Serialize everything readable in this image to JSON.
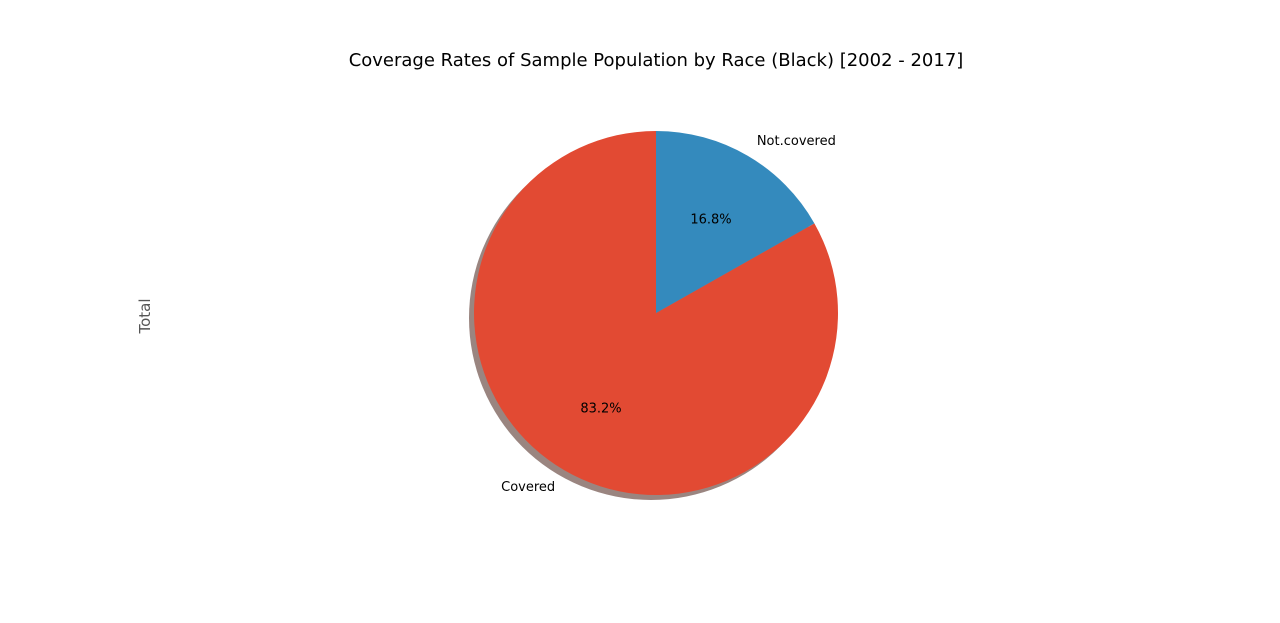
{
  "chart_data": {
    "type": "pie",
    "title": "Coverage Rates of Sample Population by Race (Black) [2002 - 2017]",
    "ylabel": "Total",
    "slices": [
      {
        "label": "Covered",
        "value": 83.2,
        "pct_label": "83.2%",
        "color": "#e24a33"
      },
      {
        "label": "Not.covered",
        "value": 16.8,
        "pct_label": "16.8%",
        "color": "#348abd"
      }
    ],
    "start_angle_deg": 90,
    "direction": "counterclockwise",
    "shadow": true,
    "shadow_color": "#9a8580"
  }
}
